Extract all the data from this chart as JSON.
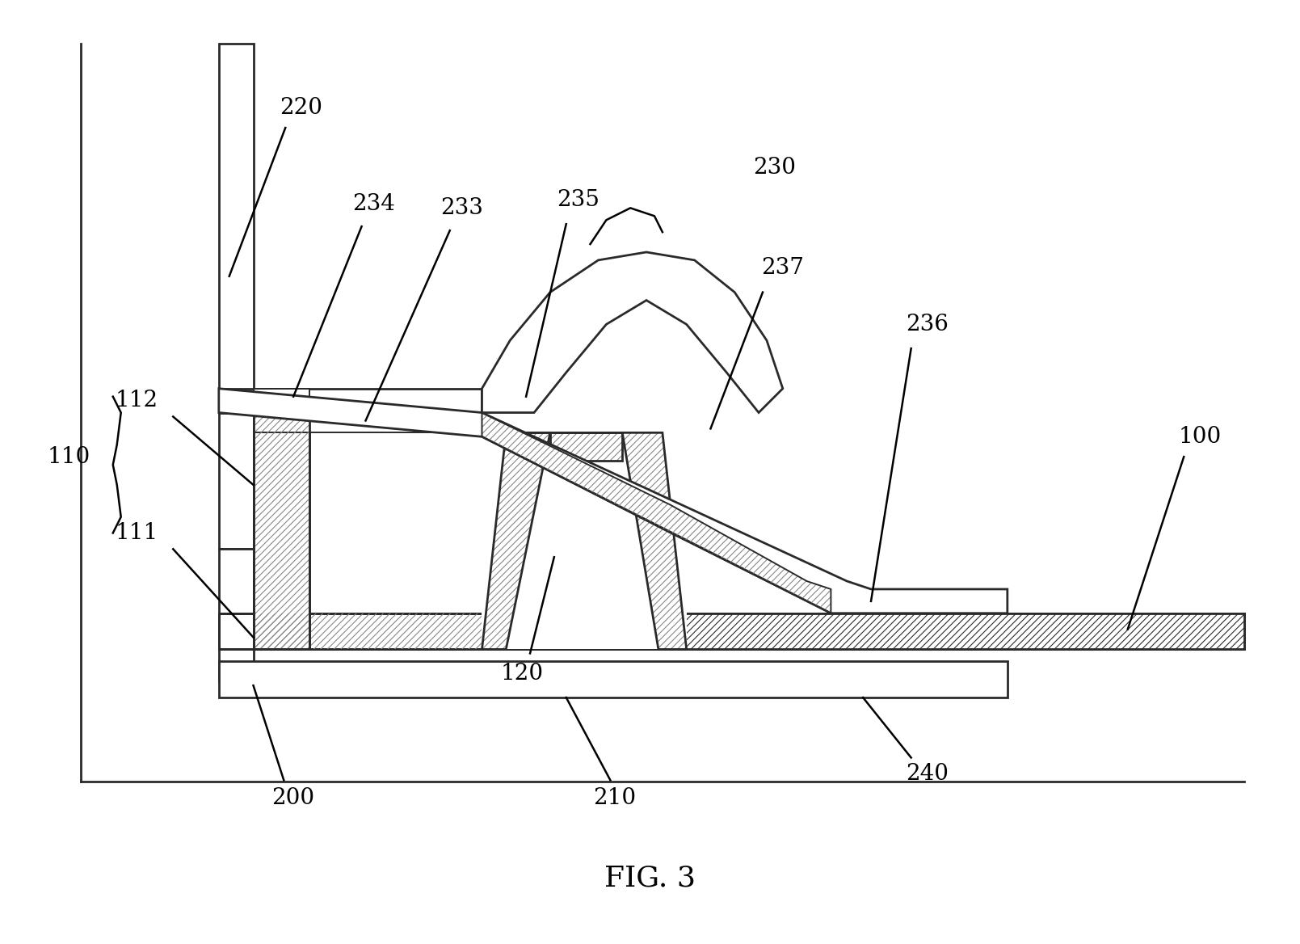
{
  "title": "FIG. 3",
  "bg_color": "#ffffff",
  "lc": "#2a2a2a",
  "lw_main": 2.0,
  "lw_thin": 1.4,
  "hatch_pattern": "////",
  "hatch_lw": 0.8,
  "white": "#ffffff",
  "hatch_fc": "#ffffff",
  "label_fs": 20,
  "label_font": "DejaVu Serif",
  "fig_label": "FIG. 3"
}
